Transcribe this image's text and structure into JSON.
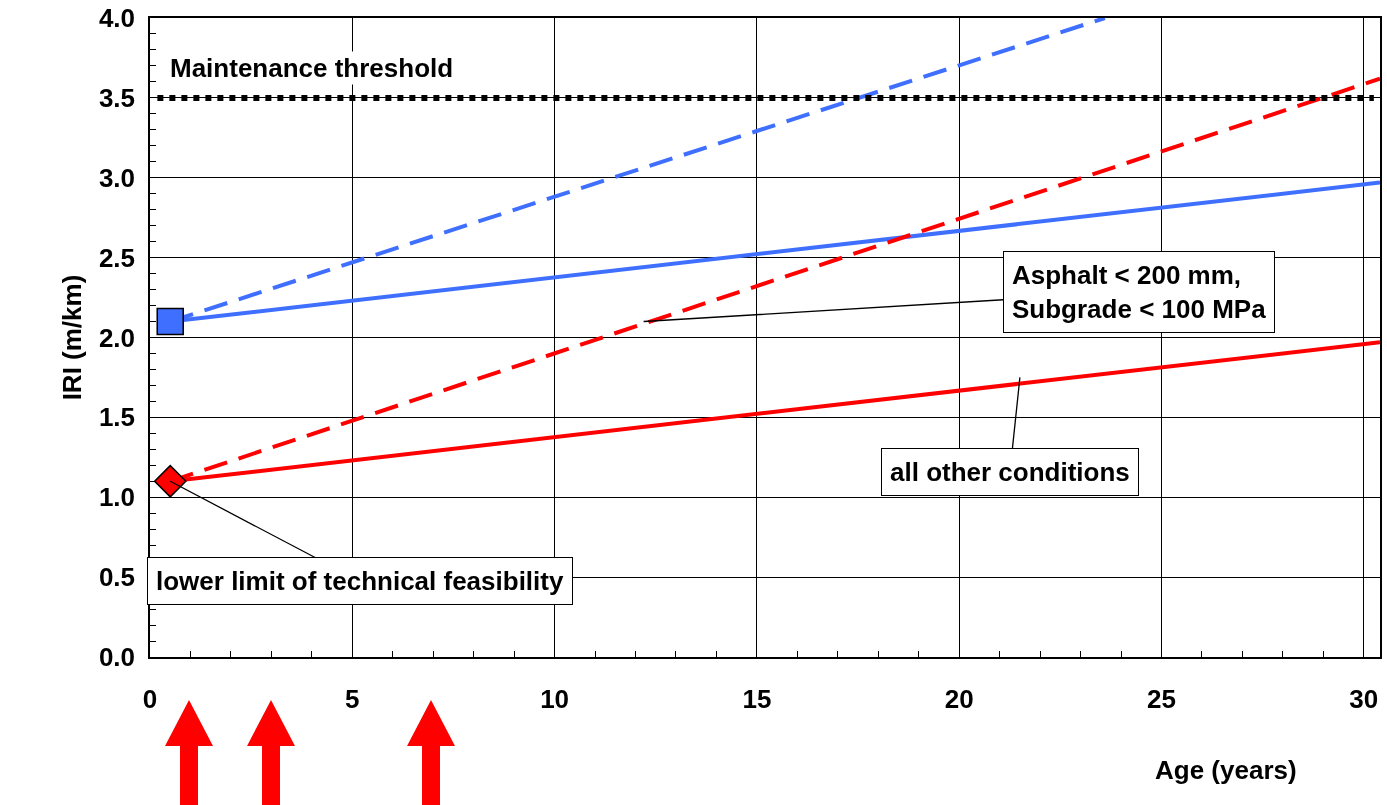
{
  "chart_data": {
    "type": "line",
    "xlabel": "Age (years)",
    "ylabel": "IRI (m/km)",
    "series": [
      {
        "type": "line",
        "color": "#3f6fff",
        "line_style": "dashed",
        "x": [
          0.5,
          23.6
        ],
        "values": [
          2.1,
          4.0
        ]
      },
      {
        "type": "line",
        "color": "#3f6fff",
        "line_style": "solid",
        "x": [
          0.5,
          30.4
        ],
        "values": [
          2.1,
          2.97
        ]
      },
      {
        "type": "line",
        "color": "#ff0000",
        "line_style": "dashed",
        "x": [
          0.5,
          30.4
        ],
        "values": [
          1.1,
          3.62
        ]
      },
      {
        "type": "line",
        "color": "#ff0000",
        "line_style": "solid",
        "x": [
          0.5,
          30.4
        ],
        "values": [
          1.1,
          1.97
        ]
      },
      {
        "type": "scatter",
        "marker": "square",
        "color": "#3f6fff",
        "x": [
          0.5
        ],
        "values": [
          2.1
        ]
      },
      {
        "type": "scatter",
        "marker": "diamond",
        "color": "#ff0000",
        "x": [
          0.5
        ],
        "values": [
          1.1
        ]
      }
    ],
    "xlim": [
      0,
      30.4
    ],
    "xticks": [
      0,
      5,
      10,
      15,
      20,
      25,
      30
    ],
    "ylim": [
      0,
      4
    ],
    "yticks": [
      {
        "value": 0,
        "label": "0.0"
      },
      {
        "value": 0.5,
        "label": "0.5"
      },
      {
        "value": 1,
        "label": "1.0"
      },
      {
        "value": 1.5,
        "label": "1.5"
      },
      {
        "value": 2,
        "label": "2.0"
      },
      {
        "value": 2.5,
        "label": "2.5"
      },
      {
        "value": 3,
        "label": "3.0"
      },
      {
        "value": 3.5,
        "label": "3.5"
      },
      {
        "value": 4,
        "label": "4.0"
      }
    ],
    "grid": true,
    "ref_lines": [
      {
        "axis": "y",
        "value": 3.5,
        "label": "Maintenance threshold",
        "color": "#000000",
        "line_style": "dotted"
      }
    ],
    "annotations": [
      {
        "text": "Asphalt < 200 mm,\nSubgrade < 100 MPa",
        "x": 12.2,
        "y": 2.1
      },
      {
        "text": "all other conditions",
        "x": 21.5,
        "y": 1.75
      },
      {
        "text": "lower limit of technical feasibility",
        "x": 0.5,
        "y": 1.1
      }
    ]
  }
}
